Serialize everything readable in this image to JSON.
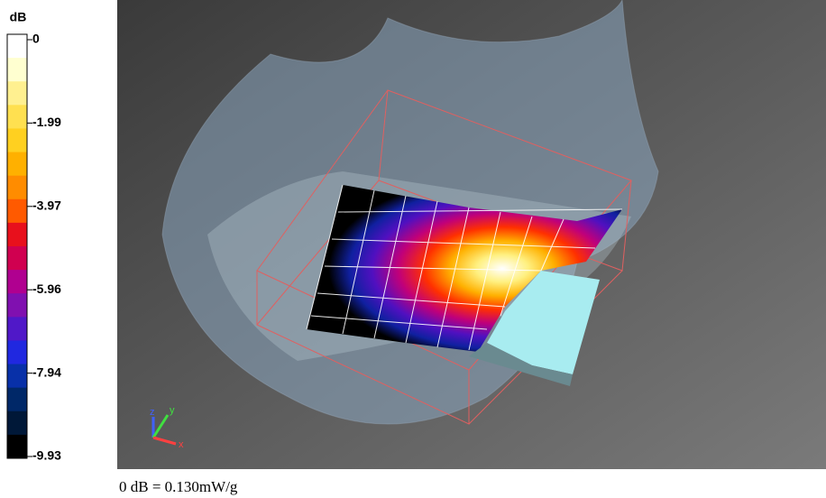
{
  "colorbar": {
    "unit": "dB",
    "ticks": [
      "0",
      "-1.99",
      "-3.97",
      "-5.96",
      "-7.94",
      "-9.93"
    ]
  },
  "view": {
    "axes": [
      "z",
      "y",
      "x"
    ]
  },
  "caption": "0 dB = 0.130mW/g"
}
